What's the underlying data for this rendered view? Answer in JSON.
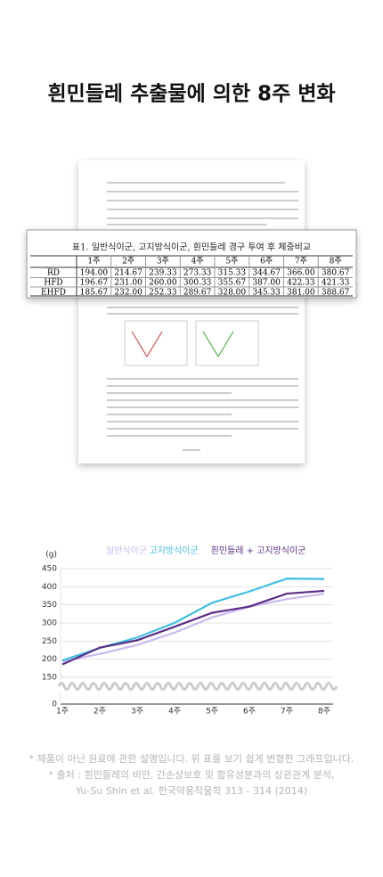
{
  "header": {
    "title": "흰민들레 추출물에 의한 8주 변화"
  },
  "document": {
    "table": {
      "caption": "표1. 일반식이군, 고지방식이군, 흰민들레 경구 투여 후 체중비교",
      "columns": [
        "1주",
        "2주",
        "3주",
        "4주",
        "5주",
        "6주",
        "7주",
        "8주"
      ],
      "rows": [
        {
          "label": "RD",
          "values": [
            "194.00",
            "214.67",
            "239.33",
            "273.33",
            "315.33",
            "344.67",
            "366.00",
            "380.67"
          ]
        },
        {
          "label": "HFD",
          "values": [
            "196.67",
            "231.00",
            "260.00",
            "300.33",
            "355.67",
            "387.00",
            "422.33",
            "421.33"
          ]
        },
        {
          "label": "EHFD",
          "values": [
            "185.67",
            "232.00",
            "252.33",
            "289.67",
            "328.00",
            "345.33",
            "381.00",
            "388.67"
          ]
        }
      ]
    }
  },
  "chart_data": {
    "type": "line",
    "y_label": "(g)",
    "categories": [
      "1주",
      "2주",
      "3주",
      "4주",
      "5주",
      "6주",
      "7주",
      "8주"
    ],
    "series": [
      {
        "name": "일반식이군",
        "color": "#c9b9ef",
        "values": [
          194,
          214.67,
          239.33,
          273.33,
          315.33,
          344.67,
          366,
          380.67
        ]
      },
      {
        "name": "고지방식이군",
        "color": "#3fbfe4",
        "values": [
          196.67,
          231,
          260,
          300.33,
          355.67,
          387,
          422.33,
          421.33
        ]
      },
      {
        "name": "흰민들레 + 고지방식이군",
        "color": "#5b2e86",
        "values": [
          185.67,
          232,
          252.33,
          289.67,
          328,
          345.33,
          381,
          388.67
        ]
      }
    ],
    "ylim": [
      0,
      450
    ],
    "yticks": [
      0,
      150,
      200,
      250,
      300,
      350,
      400,
      450
    ],
    "y_break": [
      0,
      150
    ],
    "grid": true,
    "legend": "top"
  },
  "footnotes": [
    "* 제품이 아닌 원료에 관한 설명입니다. 위 표를 보기 쉽게 변형한 그래프입니다.",
    "* 출처 : 흰민들레의 비만, 간손상보호 및 함유성분과의 상관관계 분석,",
    "Yu-Su Shin et al. 한국약용작물학 313 - 314 (2014)"
  ]
}
